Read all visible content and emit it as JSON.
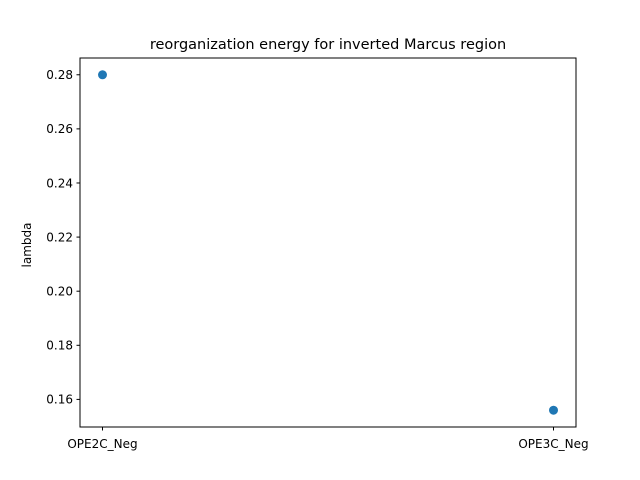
{
  "chart_data": {
    "type": "scatter",
    "title": "reorganization energy for inverted Marcus region",
    "xlabel": "",
    "ylabel": "lambda",
    "categories": [
      "OPE2C_Neg",
      "OPE3C_Neg"
    ],
    "values": [
      0.28,
      0.156
    ],
    "ylim": [
      0.1498,
      0.2862
    ],
    "yticks": [
      0.16,
      0.18,
      0.2,
      0.22,
      0.24,
      0.26,
      0.28
    ],
    "ytick_labels": [
      "0.16",
      "0.18",
      "0.20",
      "0.22",
      "0.24",
      "0.26",
      "0.28"
    ],
    "grid": false,
    "legend": "none",
    "marker_color": "#1f77b4"
  }
}
